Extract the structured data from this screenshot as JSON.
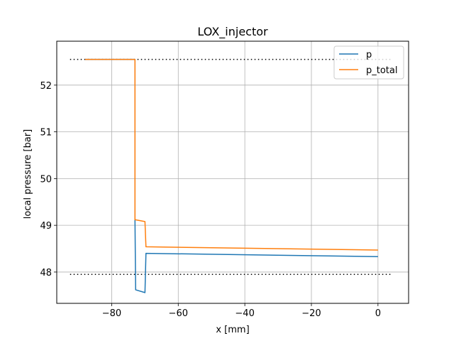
{
  "chart_data": {
    "type": "line",
    "title": "LOX_injector",
    "xlabel": "x [mm]",
    "ylabel": "local pressure [bar]",
    "xlim": [
      -96.5,
      9.2
    ],
    "ylim": [
      47.33,
      52.94
    ],
    "xticks": [
      -80,
      -60,
      -40,
      -20,
      0
    ],
    "xtick_labels": [
      "−80",
      "−60",
      "−40",
      "−20",
      "0"
    ],
    "yticks": [
      48,
      49,
      50,
      51,
      52
    ],
    "ytick_labels": [
      "48",
      "49",
      "50",
      "51",
      "52"
    ],
    "grid": true,
    "legend_position": "top-right",
    "series": [
      {
        "name": "p",
        "color": "#1f77b4",
        "x": [
          -88,
          -73,
          -73,
          -72.8,
          -70,
          -69.7,
          0
        ],
        "y": [
          52.55,
          52.55,
          49.12,
          47.62,
          47.56,
          48.4,
          48.33
        ]
      },
      {
        "name": "p_total",
        "color": "#ff7f0e",
        "x": [
          -88,
          -73,
          -73,
          -70,
          -69.7,
          0
        ],
        "y": [
          52.55,
          52.55,
          49.12,
          49.08,
          48.54,
          48.47
        ]
      }
    ],
    "reference_lines": [
      {
        "style": "dotted",
        "color": "#000000",
        "x": [
          -92.5,
          4.4
        ],
        "y": [
          52.55,
          52.55
        ]
      },
      {
        "style": "dotted",
        "color": "#000000",
        "x": [
          -92.5,
          4.4
        ],
        "y": [
          47.95,
          47.95
        ]
      }
    ]
  }
}
